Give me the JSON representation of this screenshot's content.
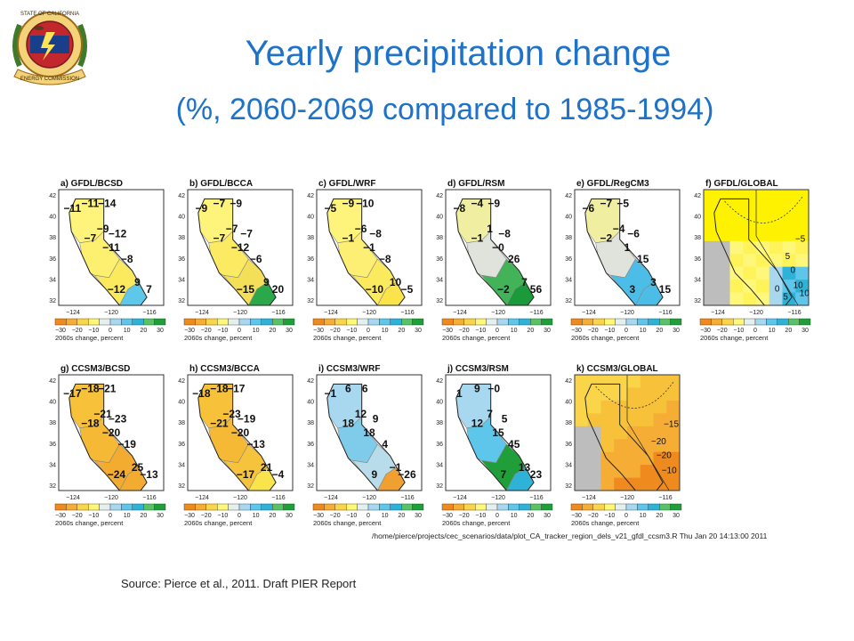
{
  "header": {
    "title": "Yearly precipitation change",
    "subtitle": "(%, 2060-2069 compared to 1985-1994)"
  },
  "seal": {
    "name": "california-energy-commission-seal",
    "text_top": "STATE OF CALIFORNIA",
    "text_bottom": "ENERGY COMMISSION"
  },
  "figure": {
    "lat_ticks": [
      "42",
      "40",
      "38",
      "36",
      "34",
      "32"
    ],
    "lon_ticks": [
      "−124",
      "−120",
      "−116"
    ],
    "colorbar_ticks": [
      "−30",
      "−20",
      "−10",
      "0",
      "10",
      "20",
      "30"
    ],
    "colorbar_label": "2060s change, percent",
    "colorbar_colors": [
      "#ee8a1e",
      "#f5ad35",
      "#fbd549",
      "#fff77a",
      "#e4f0ef",
      "#a8d8ef",
      "#5ec6ea",
      "#2fb2d8",
      "#59c266",
      "#1f9e3a"
    ],
    "panels": [
      {
        "id": "a",
        "title": "a) GFDL/BCSD",
        "labels": [
          "−11",
          "−11",
          "−14",
          "−9",
          "−7",
          "−12",
          "−11",
          "−8",
          "−12",
          "9",
          "7"
        ],
        "colors": {
          "n": "#fef47c",
          "c": "#fdf070",
          "s": "#fbe95e",
          "se": "#5ec8ea"
        }
      },
      {
        "id": "b",
        "title": "b) GFDL/BCCA",
        "labels": [
          "−9",
          "−7",
          "−9",
          "−7",
          "−7",
          "−7",
          "−12",
          "−6",
          "−15",
          "9",
          "20"
        ],
        "colors": {
          "n": "#fef47c",
          "c": "#fbea62",
          "s": "#f3e058",
          "se": "#2ba84a"
        }
      },
      {
        "id": "c",
        "title": "c) GFDL/WRF",
        "labels": [
          "−5",
          "−9",
          "−10",
          "−6",
          "−1",
          "−8",
          "−1",
          "−8",
          "−10",
          "10",
          "−5"
        ],
        "colors": {
          "n": "#fef47c",
          "c": "#fcef73",
          "s": "#fbe95e",
          "se": "#fbe34c"
        }
      },
      {
        "id": "d",
        "title": "d) GFDL/RSM",
        "labels": [
          "−8",
          "−4",
          "−9",
          "1",
          "−1",
          "−8",
          "−0",
          "26",
          "−2",
          "7",
          "56"
        ],
        "colors": {
          "n": "#f0eea0",
          "c": "#dfe3dc",
          "s": "#43b35a",
          "se": "#1a9a3a"
        }
      },
      {
        "id": "e",
        "title": "e) GFDL/RegCM3",
        "labels": [
          "−6",
          "−7",
          "−5",
          "−4",
          "−2",
          "−6",
          "1",
          "15",
          "3",
          "3",
          "15"
        ],
        "colors": {
          "n": "#f0eea0",
          "c": "#dfe3dc",
          "s": "#4cbde6",
          "se": "#4cbde6"
        }
      },
      {
        "id": "g",
        "title": "g) CCSM3/BCSD",
        "labels": [
          "−17",
          "−18",
          "−21",
          "−21",
          "−18",
          "−23",
          "−20",
          "−19",
          "−24",
          "25",
          "−13"
        ],
        "colors": {
          "n": "#f7c23a",
          "c": "#f5b935",
          "s": "#f3ac2f",
          "se": "#f3ac2f"
        }
      },
      {
        "id": "h",
        "title": "h) CCSM3/BCCA",
        "labels": [
          "−18",
          "−18",
          "−17",
          "−23",
          "−21",
          "−19",
          "−20",
          "−13",
          "−17",
          "21",
          "−4"
        ],
        "colors": {
          "n": "#f7c23a",
          "c": "#f5b935",
          "s": "#f5c43c",
          "se": "#fbe34c"
        }
      },
      {
        "id": "i",
        "title": "i) CCSM3/WRF",
        "labels": [
          "−1",
          "6",
          "6",
          "12",
          "18",
          "9",
          "18",
          "4",
          "9",
          "−1",
          "−26"
        ],
        "colors": {
          "n": "#a8d8ef",
          "c": "#7fcbea",
          "s": "#b8dcea",
          "se": "#f0a030"
        }
      },
      {
        "id": "j",
        "title": "j) CCSM3/RSM",
        "labels": [
          "1",
          "9",
          "−0",
          "7",
          "12",
          "5",
          "15",
          "45",
          "7",
          "13",
          "23"
        ],
        "colors": {
          "n": "#a8d8ef",
          "c": "#5ec6ea",
          "s": "#1f9e3a",
          "se": "#2fb2d8"
        }
      }
    ],
    "global_panels": [
      {
        "id": "f",
        "title": "f) GFDL/GLOBAL",
        "contour_labels": [
          "0",
          "5",
          "10",
          "−5",
          "0",
          "5",
          "10"
        ]
      },
      {
        "id": "k",
        "title": "k) CCSM3/GLOBAL",
        "contour_labels": [
          "−20",
          "−20",
          "−10",
          "−15"
        ]
      }
    ],
    "path_note": "/home/pierce/projects/cec_scenarios/data/plot_CA_tracker_region_dels_v21_gfdl_ccsm3.R Thu Jan 20 14:13:00 2011"
  },
  "source": "Source: Pierce et al., 2011. Draft PIER Report"
}
